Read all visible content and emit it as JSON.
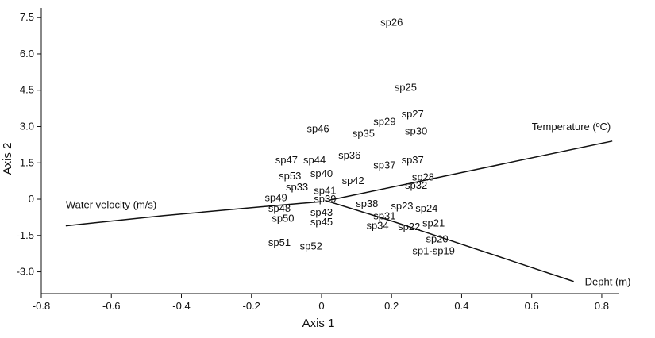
{
  "chart_data": {
    "type": "scatter",
    "title": "",
    "xlabel": "Axis 1",
    "ylabel": "Axis 2",
    "xlim": [
      -0.8,
      0.85
    ],
    "ylim": [
      -3.9,
      7.9
    ],
    "x_ticks": [
      {
        "value": -0.8,
        "label": "-0.8"
      },
      {
        "value": -0.6,
        "label": "-0.6"
      },
      {
        "value": -0.4,
        "label": "-0.4"
      },
      {
        "value": -0.2,
        "label": "-0.2"
      },
      {
        "value": 0,
        "label": "0"
      },
      {
        "value": 0.2,
        "label": "0.2"
      },
      {
        "value": 0.4,
        "label": "0.4"
      },
      {
        "value": 0.6,
        "label": "0.6"
      },
      {
        "value": 0.8,
        "label": "0.8"
      }
    ],
    "y_ticks": [
      {
        "value": 7.5,
        "label": "7.5"
      },
      {
        "value": 6.0,
        "label": "6.0"
      },
      {
        "value": 4.5,
        "label": "4.5"
      },
      {
        "value": 3.0,
        "label": "3.0"
      },
      {
        "value": 1.5,
        "label": "1.5"
      },
      {
        "value": 0,
        "label": "0"
      },
      {
        "value": -1.5,
        "label": "-1.5"
      },
      {
        "value": -3.0,
        "label": "-3.0"
      }
    ],
    "species": [
      {
        "label": "sp26",
        "x": 0.2,
        "y": 7.3
      },
      {
        "label": "sp25",
        "x": 0.24,
        "y": 4.6
      },
      {
        "label": "sp27",
        "x": 0.26,
        "y": 3.5
      },
      {
        "label": "sp29",
        "x": 0.18,
        "y": 3.2
      },
      {
        "label": "sp30",
        "x": 0.27,
        "y": 2.8
      },
      {
        "label": "sp35",
        "x": 0.12,
        "y": 2.7
      },
      {
        "label": "sp46",
        "x": -0.01,
        "y": 2.9
      },
      {
        "label": "sp36",
        "x": 0.08,
        "y": 1.8
      },
      {
        "label": "sp37",
        "x": 0.26,
        "y": 1.6
      },
      {
        "label": "sp37",
        "x": 0.18,
        "y": 1.4
      },
      {
        "label": "sp47",
        "x": -0.1,
        "y": 1.6
      },
      {
        "label": "sp44",
        "x": -0.02,
        "y": 1.6
      },
      {
        "label": "sp53",
        "x": -0.09,
        "y": 0.95
      },
      {
        "label": "sp40",
        "x": 0.0,
        "y": 1.05
      },
      {
        "label": "sp28",
        "x": 0.29,
        "y": 0.9
      },
      {
        "label": "sp42",
        "x": 0.09,
        "y": 0.75
      },
      {
        "label": "sp33",
        "x": -0.07,
        "y": 0.5
      },
      {
        "label": "sp32",
        "x": 0.27,
        "y": 0.55
      },
      {
        "label": "sp41",
        "x": 0.01,
        "y": 0.35
      },
      {
        "label": "sp49",
        "x": -0.13,
        "y": 0.05
      },
      {
        "label": "sp39",
        "x": 0.01,
        "y": 0.0
      },
      {
        "label": "sp48",
        "x": -0.12,
        "y": -0.4
      },
      {
        "label": "sp38",
        "x": 0.13,
        "y": -0.2
      },
      {
        "label": "sp23",
        "x": 0.23,
        "y": -0.3
      },
      {
        "label": "sp24",
        "x": 0.3,
        "y": -0.4
      },
      {
        "label": "sp43",
        "x": 0.0,
        "y": -0.55
      },
      {
        "label": "sp31",
        "x": 0.18,
        "y": -0.7
      },
      {
        "label": "sp50",
        "x": -0.11,
        "y": -0.8
      },
      {
        "label": "sp45",
        "x": 0.0,
        "y": -0.95
      },
      {
        "label": "sp21",
        "x": 0.32,
        "y": -1.0
      },
      {
        "label": "sp34",
        "x": 0.16,
        "y": -1.1
      },
      {
        "label": "sp22",
        "x": 0.25,
        "y": -1.15
      },
      {
        "label": "sp20",
        "x": 0.33,
        "y": -1.65
      },
      {
        "label": "sp51",
        "x": -0.12,
        "y": -1.8
      },
      {
        "label": "sp52",
        "x": -0.03,
        "y": -1.95
      },
      {
        "label": "sp1-sp19",
        "x": 0.32,
        "y": -2.15
      }
    ],
    "vectors": [
      {
        "label": "Temperature (ºC)",
        "points": [
          [
            0.02,
            -0.05
          ],
          [
            0.83,
            2.4
          ]
        ]
      },
      {
        "label": "Water velocity (m/s)",
        "points": [
          [
            -0.73,
            -1.1
          ],
          [
            -0.45,
            -0.68
          ],
          [
            -0.2,
            -0.35
          ],
          [
            0.0,
            -0.1
          ]
        ]
      },
      {
        "label": "Depht (m)",
        "points": [
          [
            0.01,
            -0.05
          ],
          [
            0.2,
            -0.9
          ],
          [
            0.72,
            -3.4
          ]
        ]
      }
    ]
  }
}
